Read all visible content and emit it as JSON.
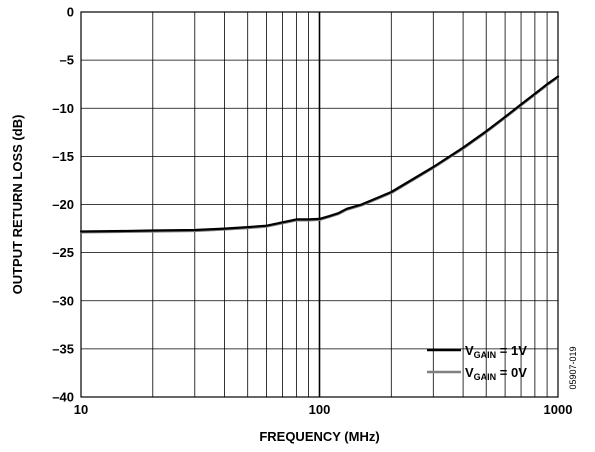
{
  "chart_data": {
    "type": "line",
    "title": "",
    "xlabel": "FREQUENCY (MHz)",
    "ylabel": "OUTPUT RETURN LOSS (dB)",
    "xscale": "log",
    "xlim": [
      10,
      1000
    ],
    "ylim": [
      -40,
      0
    ],
    "x_ticks": [
      10,
      100,
      1000
    ],
    "x_tick_labels": [
      "10",
      "100",
      "1000"
    ],
    "y_ticks": [
      0,
      -5,
      -10,
      -15,
      -20,
      -25,
      -30,
      -35,
      -40
    ],
    "y_tick_labels": [
      "0",
      "–5",
      "–10",
      "–15",
      "–20",
      "–25",
      "–30",
      "–35",
      "–40"
    ],
    "grid": true,
    "legend_position": "bottom-right",
    "figure_id": "05907-019",
    "series": [
      {
        "legend_main": "V",
        "legend_sub": "GAIN",
        "legend_rest": " = 1V",
        "color": "#000000",
        "x": [
          10,
          15,
          20,
          30,
          40,
          50,
          60,
          70,
          80,
          90,
          100,
          110,
          120,
          130,
          150,
          200,
          300,
          400,
          500,
          600,
          700,
          800,
          900,
          1000
        ],
        "y": [
          -22.8,
          -22.75,
          -22.7,
          -22.65,
          -22.5,
          -22.35,
          -22.2,
          -21.85,
          -21.55,
          -21.55,
          -21.5,
          -21.2,
          -20.9,
          -20.45,
          -20.0,
          -18.7,
          -16.1,
          -14.1,
          -12.4,
          -10.9,
          -9.6,
          -8.5,
          -7.5,
          -6.7
        ]
      },
      {
        "legend_main": "V",
        "legend_sub": "GAIN",
        "legend_rest": " = 0V",
        "color": "#808080",
        "x": [
          10,
          15,
          20,
          30,
          40,
          50,
          60,
          70,
          80,
          90,
          100,
          110,
          120,
          130,
          150,
          200,
          300,
          400,
          500,
          600,
          700,
          800,
          900,
          1000
        ],
        "y": [
          -22.9,
          -22.85,
          -22.8,
          -22.75,
          -22.6,
          -22.45,
          -22.3,
          -21.95,
          -21.65,
          -21.65,
          -21.6,
          -21.3,
          -21.0,
          -20.55,
          -20.1,
          -18.8,
          -16.2,
          -14.2,
          -12.5,
          -11.0,
          -9.7,
          -8.6,
          -7.6,
          -6.8
        ]
      }
    ]
  }
}
